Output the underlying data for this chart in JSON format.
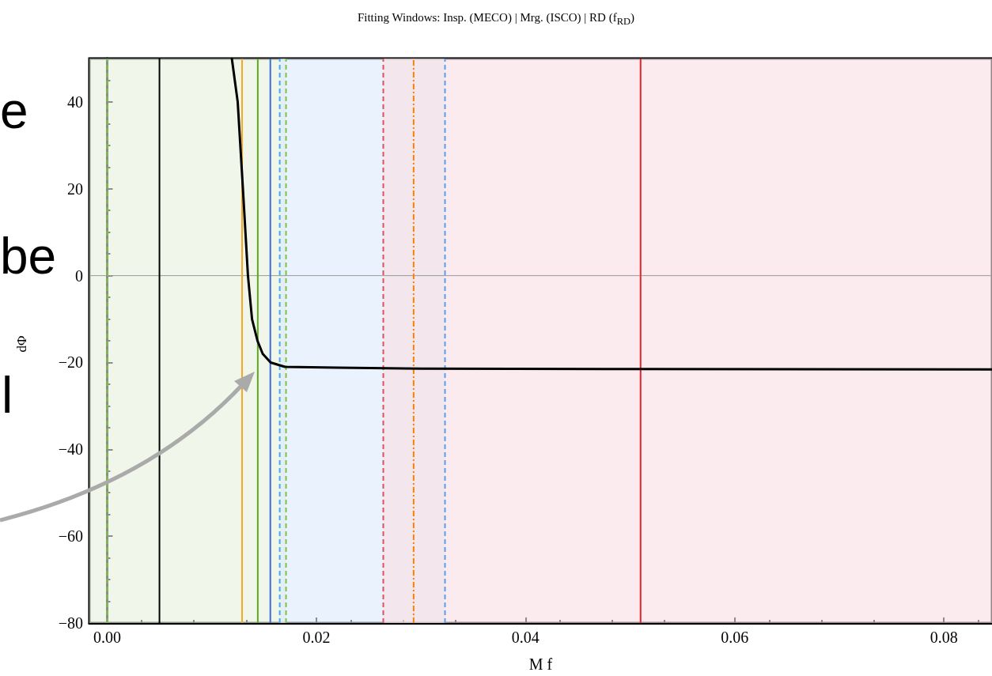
{
  "chart_data": {
    "type": "line",
    "title": "Fitting Windows: Insp. (MECO)  | Mrg. (ISCO) | RD (f$_{RD}$)",
    "xlabel": "M f",
    "ylabel": "dΦ",
    "annotations": [
      "e",
      "be",
      "l"
    ],
    "series": [
      {
        "color": "#000000",
        "x": [
          0.01192,
          0.01248,
          0.01298,
          0.01346,
          0.01385,
          0.01437,
          0.01487,
          0.01563,
          0.017,
          0.022,
          0.03,
          0.05,
          0.0846
        ],
        "values": [
          50,
          40,
          20,
          0,
          -10,
          -15,
          -18,
          -20,
          -21,
          -21.2,
          -21.4,
          -21.5,
          -21.6
        ]
      }
    ],
    "xlim": [
      -0.0017,
      0.0846
    ],
    "ylim": [
      -80,
      50
    ],
    "xticks": [
      {
        "value": 0,
        "label": "0.00"
      },
      {
        "value": 0.02,
        "label": "0.02"
      },
      {
        "value": 0.04,
        "label": "0.04"
      },
      {
        "value": 0.06,
        "label": "0.06"
      },
      {
        "value": 0.08,
        "label": "0.08"
      }
    ],
    "yticks": [
      -80,
      -60,
      -40,
      -20,
      0,
      20,
      40
    ],
    "grid": false,
    "marker": "none",
    "line_style": "solid",
    "ref_lines": [
      {
        "axis": "y",
        "value": 0,
        "color": "#999999",
        "line_style": "solid"
      },
      {
        "axis": "x",
        "value": 0,
        "color": "#7cc24a",
        "line_style": "dashed"
      },
      {
        "axis": "x",
        "value": 0.005,
        "color": "#000000",
        "line_style": "solid"
      },
      {
        "axis": "x",
        "value": 0.0129,
        "color": "#f5a623",
        "line_style": "solid"
      },
      {
        "axis": "x",
        "value": 0.0144,
        "color": "#5aaa1e",
        "line_style": "solid"
      },
      {
        "axis": "x",
        "value": 0.0156,
        "color": "#3b6fd8",
        "line_style": "solid"
      },
      {
        "axis": "x",
        "value": 0.0165,
        "color": "#4aa8f0",
        "line_style": "dashed"
      },
      {
        "axis": "x",
        "value": 0.0171,
        "color": "#7cc24a",
        "line_style": "dashed"
      },
      {
        "axis": "x",
        "value": 0.0264,
        "color": "#e05060",
        "line_style": "dashed"
      },
      {
        "axis": "x",
        "value": 0.0293,
        "color": "#ff8000",
        "line_style": "dashdot"
      },
      {
        "axis": "x",
        "value": 0.0323,
        "color": "#55a0f0",
        "line_style": "dashed"
      },
      {
        "axis": "x",
        "value": 0.051,
        "color": "#e8202a",
        "line_style": "solid"
      }
    ],
    "bands": [
      {
        "axis": "x",
        "from": -0.0017,
        "to": 0.0171,
        "color": "#e6f0da"
      },
      {
        "axis": "x",
        "from": 0.0165,
        "to": 0.0323,
        "color": "#dcebfc"
      },
      {
        "axis": "x",
        "from": 0.0264,
        "to": 0.0846,
        "color": "#f8dde3"
      }
    ]
  }
}
